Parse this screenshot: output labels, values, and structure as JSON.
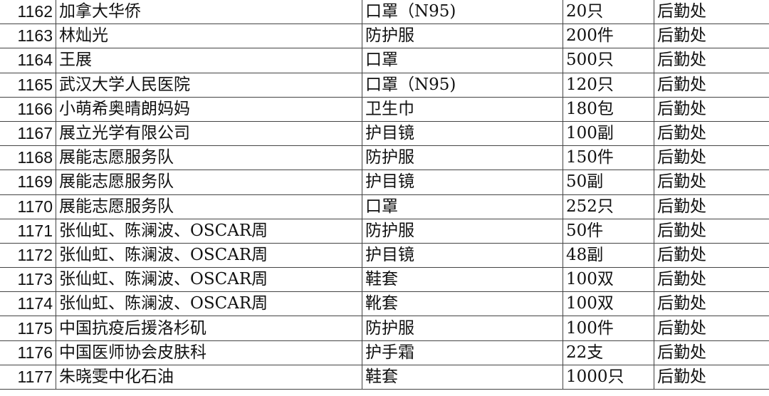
{
  "rows": [
    {
      "id": "1162",
      "donor": "加拿大华侨",
      "item": "口罩（N95)",
      "qty": "20只",
      "dept": "后勤处"
    },
    {
      "id": "1163",
      "donor": "林灿光",
      "item": "防护服",
      "qty": "200件",
      "dept": "后勤处"
    },
    {
      "id": "1164",
      "donor": "王展",
      "item": "口罩",
      "qty": "500只",
      "dept": "后勤处"
    },
    {
      "id": "1165",
      "donor": "武汉大学人民医院",
      "item": "口罩（N95)",
      "qty": "120只",
      "dept": "后勤处"
    },
    {
      "id": "1166",
      "donor": "小萌希奥晴朗妈妈",
      "item": "卫生巾",
      "qty": "180包",
      "dept": "后勤处"
    },
    {
      "id": "1167",
      "donor": "展立光学有限公司",
      "item": "护目镜",
      "qty": "100副",
      "dept": "后勤处"
    },
    {
      "id": "1168",
      "donor": "展能志愿服务队",
      "item": "防护服",
      "qty": "150件",
      "dept": "后勤处"
    },
    {
      "id": "1169",
      "donor": "展能志愿服务队",
      "item": "护目镜",
      "qty": "50副",
      "dept": "后勤处"
    },
    {
      "id": "1170",
      "donor": "展能志愿服务队",
      "item": "口罩",
      "qty": "252只",
      "dept": "后勤处"
    },
    {
      "id": "1171",
      "donor": "张仙虹、陈澜波、OSCAR周",
      "item": "防护服",
      "qty": "50件",
      "dept": "后勤处"
    },
    {
      "id": "1172",
      "donor": "张仙虹、陈澜波、OSCAR周",
      "item": "护目镜",
      "qty": "48副",
      "dept": "后勤处"
    },
    {
      "id": "1173",
      "donor": "张仙虹、陈澜波、OSCAR周",
      "item": "鞋套",
      "qty": "100双",
      "dept": "后勤处"
    },
    {
      "id": "1174",
      "donor": "张仙虹、陈澜波、OSCAR周",
      "item": "靴套",
      "qty": "100双",
      "dept": "后勤处"
    },
    {
      "id": "1175",
      "donor": "中国抗疫后援洛杉矶",
      "item": "防护服",
      "qty": "100件",
      "dept": "后勤处"
    },
    {
      "id": "1176",
      "donor": "中国医师协会皮肤科",
      "item": "护手霜",
      "qty": "22支",
      "dept": "后勤处"
    },
    {
      "id": "1177",
      "donor": "朱晓雯中化石油",
      "item": "鞋套",
      "qty": "1000只",
      "dept": "后勤处"
    }
  ]
}
